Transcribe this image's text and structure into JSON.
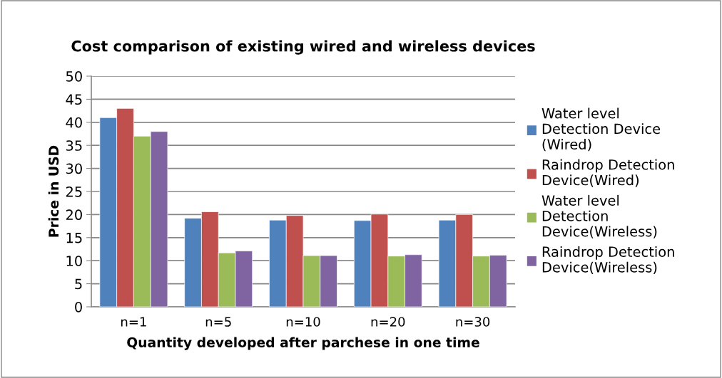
{
  "chart_data": {
    "type": "bar",
    "title": "Cost comparison of existing wired and wireless devices",
    "xlabel": "Quantity developed after parchese in one time",
    "ylabel": "Price in USD",
    "categories": [
      "n=1",
      "n=5",
      "n=10",
      "n=20",
      "n=30"
    ],
    "series": [
      {
        "name": "Water level Detection Device (Wired)",
        "color": "#4f81bd",
        "values": [
          41,
          19.2,
          18.8,
          18.7,
          18.8
        ]
      },
      {
        "name": "Raindrop Detection Device(Wired)",
        "color": "#c0504d",
        "values": [
          43,
          20.6,
          19.8,
          20.1,
          20.0
        ]
      },
      {
        "name": "Water level Detection Device(Wireless)",
        "color": "#9bbb59",
        "values": [
          37,
          11.7,
          11.1,
          11.0,
          11.0
        ]
      },
      {
        "name": "Raindrop Detection Device(Wireless)",
        "color": "#8064a2",
        "values": [
          38,
          12.1,
          11.1,
          11.3,
          11.2
        ]
      }
    ],
    "ylim": [
      0,
      50
    ],
    "yticks": [
      0,
      5,
      10,
      15,
      20,
      25,
      30,
      35,
      40,
      45,
      50
    ],
    "grid": "y",
    "legend": "right"
  }
}
